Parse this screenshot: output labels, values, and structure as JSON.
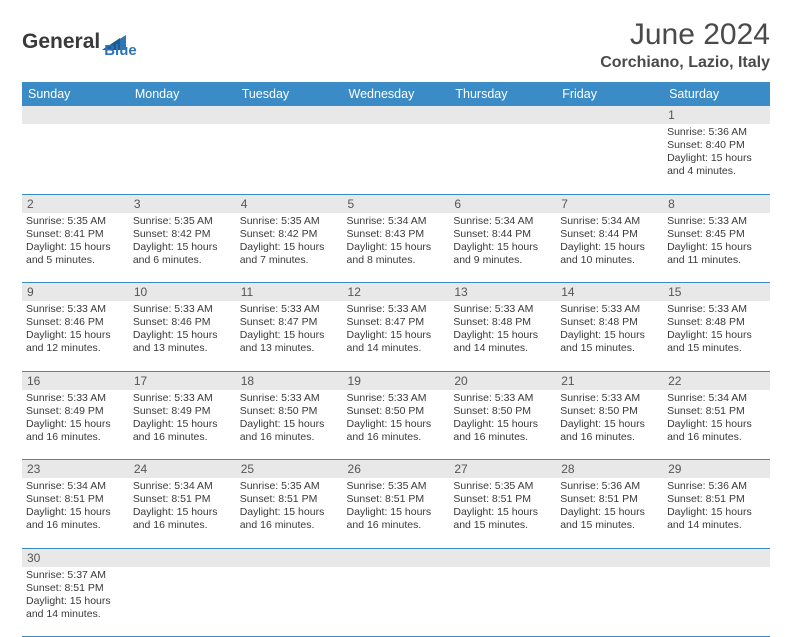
{
  "logo": {
    "part1": "General",
    "part2": "Blue"
  },
  "title": "June 2024",
  "location": "Corchiano, Lazio, Italy",
  "header_bg": "#3b8bc7",
  "header_fg": "#ffffff",
  "daynum_bg": "#e8e8e8",
  "days": [
    "Sunday",
    "Monday",
    "Tuesday",
    "Wednesday",
    "Thursday",
    "Friday",
    "Saturday"
  ],
  "weeks": [
    [
      null,
      null,
      null,
      null,
      null,
      null,
      {
        "n": "1",
        "sr": "Sunrise: 5:36 AM",
        "ss": "Sunset: 8:40 PM",
        "dl": "Daylight: 15 hours and 4 minutes."
      }
    ],
    [
      {
        "n": "2",
        "sr": "Sunrise: 5:35 AM",
        "ss": "Sunset: 8:41 PM",
        "dl": "Daylight: 15 hours and 5 minutes."
      },
      {
        "n": "3",
        "sr": "Sunrise: 5:35 AM",
        "ss": "Sunset: 8:42 PM",
        "dl": "Daylight: 15 hours and 6 minutes."
      },
      {
        "n": "4",
        "sr": "Sunrise: 5:35 AM",
        "ss": "Sunset: 8:42 PM",
        "dl": "Daylight: 15 hours and 7 minutes."
      },
      {
        "n": "5",
        "sr": "Sunrise: 5:34 AM",
        "ss": "Sunset: 8:43 PM",
        "dl": "Daylight: 15 hours and 8 minutes."
      },
      {
        "n": "6",
        "sr": "Sunrise: 5:34 AM",
        "ss": "Sunset: 8:44 PM",
        "dl": "Daylight: 15 hours and 9 minutes."
      },
      {
        "n": "7",
        "sr": "Sunrise: 5:34 AM",
        "ss": "Sunset: 8:44 PM",
        "dl": "Daylight: 15 hours and 10 minutes."
      },
      {
        "n": "8",
        "sr": "Sunrise: 5:33 AM",
        "ss": "Sunset: 8:45 PM",
        "dl": "Daylight: 15 hours and 11 minutes."
      }
    ],
    [
      {
        "n": "9",
        "sr": "Sunrise: 5:33 AM",
        "ss": "Sunset: 8:46 PM",
        "dl": "Daylight: 15 hours and 12 minutes."
      },
      {
        "n": "10",
        "sr": "Sunrise: 5:33 AM",
        "ss": "Sunset: 8:46 PM",
        "dl": "Daylight: 15 hours and 13 minutes."
      },
      {
        "n": "11",
        "sr": "Sunrise: 5:33 AM",
        "ss": "Sunset: 8:47 PM",
        "dl": "Daylight: 15 hours and 13 minutes."
      },
      {
        "n": "12",
        "sr": "Sunrise: 5:33 AM",
        "ss": "Sunset: 8:47 PM",
        "dl": "Daylight: 15 hours and 14 minutes."
      },
      {
        "n": "13",
        "sr": "Sunrise: 5:33 AM",
        "ss": "Sunset: 8:48 PM",
        "dl": "Daylight: 15 hours and 14 minutes."
      },
      {
        "n": "14",
        "sr": "Sunrise: 5:33 AM",
        "ss": "Sunset: 8:48 PM",
        "dl": "Daylight: 15 hours and 15 minutes."
      },
      {
        "n": "15",
        "sr": "Sunrise: 5:33 AM",
        "ss": "Sunset: 8:48 PM",
        "dl": "Daylight: 15 hours and 15 minutes."
      }
    ],
    [
      {
        "n": "16",
        "sr": "Sunrise: 5:33 AM",
        "ss": "Sunset: 8:49 PM",
        "dl": "Daylight: 15 hours and 16 minutes."
      },
      {
        "n": "17",
        "sr": "Sunrise: 5:33 AM",
        "ss": "Sunset: 8:49 PM",
        "dl": "Daylight: 15 hours and 16 minutes."
      },
      {
        "n": "18",
        "sr": "Sunrise: 5:33 AM",
        "ss": "Sunset: 8:50 PM",
        "dl": "Daylight: 15 hours and 16 minutes."
      },
      {
        "n": "19",
        "sr": "Sunrise: 5:33 AM",
        "ss": "Sunset: 8:50 PM",
        "dl": "Daylight: 15 hours and 16 minutes."
      },
      {
        "n": "20",
        "sr": "Sunrise: 5:33 AM",
        "ss": "Sunset: 8:50 PM",
        "dl": "Daylight: 15 hours and 16 minutes."
      },
      {
        "n": "21",
        "sr": "Sunrise: 5:33 AM",
        "ss": "Sunset: 8:50 PM",
        "dl": "Daylight: 15 hours and 16 minutes."
      },
      {
        "n": "22",
        "sr": "Sunrise: 5:34 AM",
        "ss": "Sunset: 8:51 PM",
        "dl": "Daylight: 15 hours and 16 minutes."
      }
    ],
    [
      {
        "n": "23",
        "sr": "Sunrise: 5:34 AM",
        "ss": "Sunset: 8:51 PM",
        "dl": "Daylight: 15 hours and 16 minutes."
      },
      {
        "n": "24",
        "sr": "Sunrise: 5:34 AM",
        "ss": "Sunset: 8:51 PM",
        "dl": "Daylight: 15 hours and 16 minutes."
      },
      {
        "n": "25",
        "sr": "Sunrise: 5:35 AM",
        "ss": "Sunset: 8:51 PM",
        "dl": "Daylight: 15 hours and 16 minutes."
      },
      {
        "n": "26",
        "sr": "Sunrise: 5:35 AM",
        "ss": "Sunset: 8:51 PM",
        "dl": "Daylight: 15 hours and 16 minutes."
      },
      {
        "n": "27",
        "sr": "Sunrise: 5:35 AM",
        "ss": "Sunset: 8:51 PM",
        "dl": "Daylight: 15 hours and 15 minutes."
      },
      {
        "n": "28",
        "sr": "Sunrise: 5:36 AM",
        "ss": "Sunset: 8:51 PM",
        "dl": "Daylight: 15 hours and 15 minutes."
      },
      {
        "n": "29",
        "sr": "Sunrise: 5:36 AM",
        "ss": "Sunset: 8:51 PM",
        "dl": "Daylight: 15 hours and 14 minutes."
      }
    ],
    [
      {
        "n": "30",
        "sr": "Sunrise: 5:37 AM",
        "ss": "Sunset: 8:51 PM",
        "dl": "Daylight: 15 hours and 14 minutes."
      },
      null,
      null,
      null,
      null,
      null,
      null
    ]
  ]
}
